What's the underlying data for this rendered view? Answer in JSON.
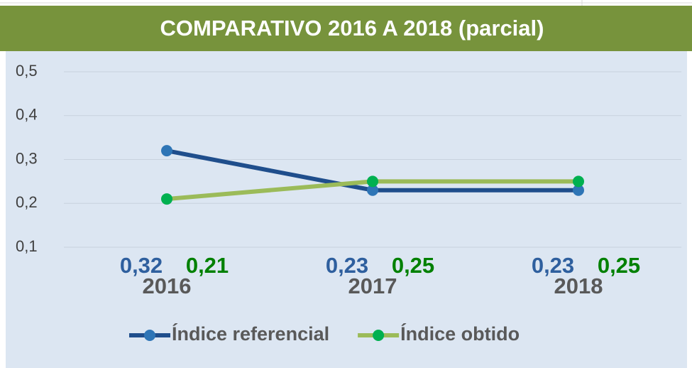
{
  "chart_data": {
    "type": "line",
    "title": "COMPARATIVO 2016 A 2018 (parcial)",
    "categories": [
      "2016",
      "2017",
      "2018"
    ],
    "series": [
      {
        "name": "Índice referencial",
        "color": "#1f4e8c",
        "marker_color": "#2e75b6",
        "label_color": "#2e5f9e",
        "values": [
          0.32,
          0.23,
          0.23
        ],
        "value_labels": [
          "0,32",
          "0,23",
          "0,23"
        ]
      },
      {
        "name": "Índice obtido",
        "color": "#9bbb59",
        "marker_color": "#00b050",
        "label_color": "#008000",
        "values": [
          0.21,
          0.25,
          0.25
        ],
        "value_labels": [
          "0,21",
          "0,25",
          "0,25"
        ]
      }
    ],
    "ylim": [
      0.1,
      0.5
    ],
    "yticks": [
      {
        "value": 0.1,
        "label": "0,1"
      },
      {
        "value": 0.2,
        "label": "0,2"
      },
      {
        "value": 0.3,
        "label": "0,3"
      },
      {
        "value": 0.4,
        "label": "0,4"
      },
      {
        "value": 0.5,
        "label": "0,5"
      }
    ],
    "grid": true,
    "legend": "bottom"
  }
}
